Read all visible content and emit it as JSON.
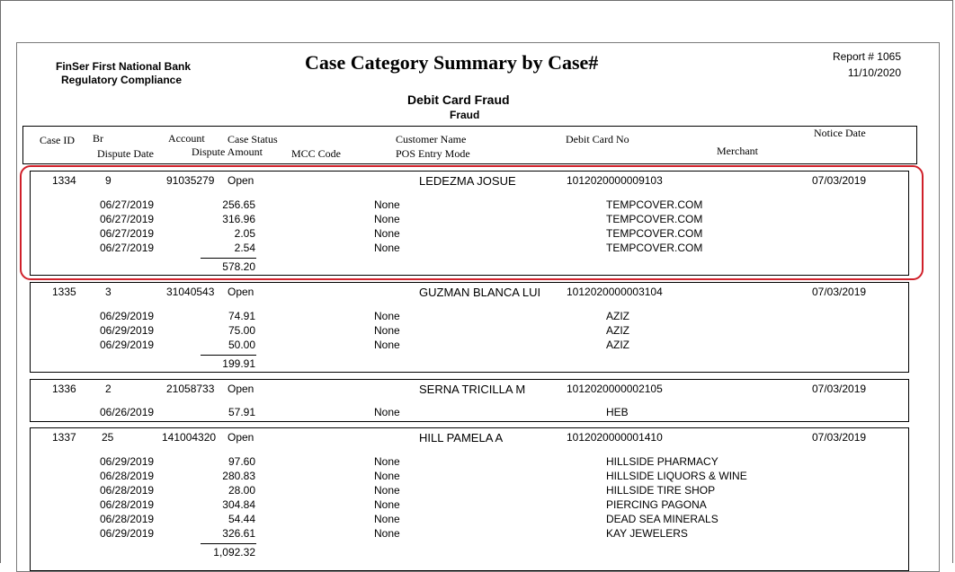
{
  "header": {
    "bank_name": "FinSer First National Bank",
    "department": "Regulatory Compliance",
    "title": "Case Category Summary by Case#",
    "report_label": "Report # 1065",
    "report_date": "11/10/2020",
    "category": "Debit Card Fraud",
    "subcategory": "Fraud"
  },
  "columns": {
    "case_id": "Case ID",
    "br": "Br",
    "dispute_date": "Dispute Date",
    "account": "Account",
    "dispute_amount": "Dispute Amount",
    "case_status": "Case Status",
    "mcc_code": "MCC Code",
    "customer_name": "Customer Name",
    "pos_entry_mode": "POS Entry Mode",
    "debit_card_no": "Debit Card No",
    "merchant": "Merchant",
    "notice_date": "Notice Date"
  },
  "cases": [
    {
      "case_id": "1334",
      "br": "9",
      "account": "91035279",
      "status": "Open",
      "customer": "LEDEZMA JOSUE",
      "card_no": "1012020000009103",
      "notice_date": "07/03/2019",
      "disputes": [
        {
          "date": "06/27/2019",
          "amount": "256.65",
          "pos": "None",
          "merchant": "TEMPCOVER.COM"
        },
        {
          "date": "06/27/2019",
          "amount": "316.96",
          "pos": "None",
          "merchant": "TEMPCOVER.COM"
        },
        {
          "date": "06/27/2019",
          "amount": "2.05",
          "pos": "None",
          "merchant": "TEMPCOVER.COM"
        },
        {
          "date": "06/27/2019",
          "amount": "2.54",
          "pos": "None",
          "merchant": "TEMPCOVER.COM"
        }
      ],
      "total": "578.20"
    },
    {
      "case_id": "1335",
      "br": "3",
      "account": "31040543",
      "status": "Open",
      "customer": "GUZMAN BLANCA LUI",
      "card_no": "1012020000003104",
      "notice_date": "07/03/2019",
      "disputes": [
        {
          "date": "06/29/2019",
          "amount": "74.91",
          "pos": "None",
          "merchant": "AZIZ"
        },
        {
          "date": "06/29/2019",
          "amount": "75.00",
          "pos": "None",
          "merchant": "AZIZ"
        },
        {
          "date": "06/29/2019",
          "amount": "50.00",
          "pos": "None",
          "merchant": "AZIZ"
        }
      ],
      "total": "199.91"
    },
    {
      "case_id": "1336",
      "br": "2",
      "account": "21058733",
      "status": "Open",
      "customer": "SERNA TRICILLA M",
      "card_no": "1012020000002105",
      "notice_date": "07/03/2019",
      "disputes": [
        {
          "date": "06/26/2019",
          "amount": "57.91",
          "pos": "None",
          "merchant": "HEB"
        }
      ],
      "total": ""
    },
    {
      "case_id": "1337",
      "br": "25",
      "account": "141004320",
      "status": "Open",
      "customer": "HILL PAMELA A",
      "card_no": "1012020000001410",
      "notice_date": "07/03/2019",
      "disputes": [
        {
          "date": "06/29/2019",
          "amount": "97.60",
          "pos": "None",
          "merchant": "HILLSIDE PHARMACY"
        },
        {
          "date": "06/28/2019",
          "amount": "280.83",
          "pos": "None",
          "merchant": "HILLSIDE LIQUORS & WINE"
        },
        {
          "date": "06/28/2019",
          "amount": "28.00",
          "pos": "None",
          "merchant": "HILLSIDE TIRE SHOP"
        },
        {
          "date": "06/28/2019",
          "amount": "304.84",
          "pos": "None",
          "merchant": "PIERCING PAGONA"
        },
        {
          "date": "06/28/2019",
          "amount": "54.44",
          "pos": "None",
          "merchant": "DEAD SEA MINERALS"
        },
        {
          "date": "06/29/2019",
          "amount": "326.61",
          "pos": "None",
          "merchant": "KAY JEWELERS"
        }
      ],
      "total": "1,092.32"
    }
  ],
  "highlight_color": "#d0202a"
}
